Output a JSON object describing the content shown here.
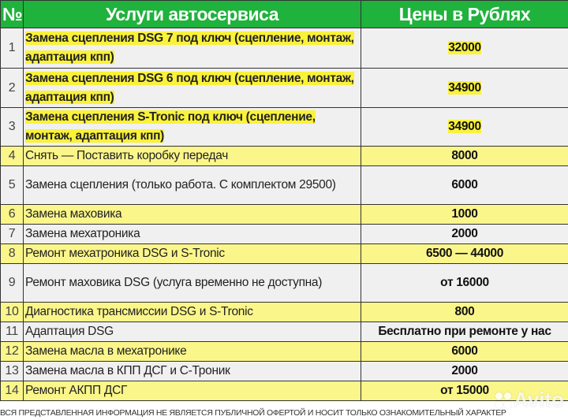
{
  "header": {
    "num": "№",
    "service": "Услуги автосервиса",
    "price": "Цены в Рублях"
  },
  "rows": [
    {
      "num": "1",
      "service": "Замена сцепления DSG 7 под ключ (сцепление, монтаж, адаптация кпп)",
      "price": "32000",
      "highlight": true
    },
    {
      "num": "2",
      "service": "Замена сцепления DSG 6 под ключ (сцепление, монтаж, адаптация кпп)",
      "price": "34900",
      "highlight": true
    },
    {
      "num": "3",
      "service": "Замена сцепления S-Tronic под ключ (сцепление, монтаж, адаптация кпп)",
      "price": "34900",
      "highlight": true
    },
    {
      "num": "4",
      "service": "Снять — Поставить коробку передач",
      "price": "8000"
    },
    {
      "num": "5",
      "service": "Замена сцепления (только работа. С комплектом 29500)",
      "price": "6000"
    },
    {
      "num": "6",
      "service": "Замена маховика",
      "price": "1000"
    },
    {
      "num": "7",
      "service": "Замена мехатроника",
      "price": "2000"
    },
    {
      "num": "8",
      "service": "Ремонт мехатроника DSG и S-Tronic",
      "price": "6500 — 44000"
    },
    {
      "num": "9",
      "service": "Ремонт маховика DSG (услуга временно не доступна)",
      "price": "от 16000"
    },
    {
      "num": "10",
      "service": "Диагностика трансмиссии DSG и S-Tronic",
      "price": "800"
    },
    {
      "num": "11",
      "service": "Адаптация DSG",
      "price": "Бесплатно при ремонте у нас"
    },
    {
      "num": "12",
      "service": "Замена масла в мехатронике",
      "price": "6000"
    },
    {
      "num": "13",
      "service": "Замена масла в КПП ДСГ и С-Троник",
      "price": "2000"
    },
    {
      "num": "14",
      "service": "Ремонт АКПП ДСГ",
      "price": "от 15000"
    }
  ],
  "footer": "ВСЯ ПРЕДСТАВЛЕННАЯ ИНФОРМАЦИЯ НЕ ЯВЛЯЕТСЯ ПУБЛИЧНОЙ ОФЕРТОЙ И НОСИТ ТОЛЬКО ОЗНАКОМИТЕЛЬНЫЙ ХАРАКТЕР",
  "watermark": "Avito",
  "colors": {
    "header": "#1fb23c",
    "row_yellow": "#fbf68a",
    "row_grey": "#f0f0f0",
    "highlight": "#faf23a"
  }
}
